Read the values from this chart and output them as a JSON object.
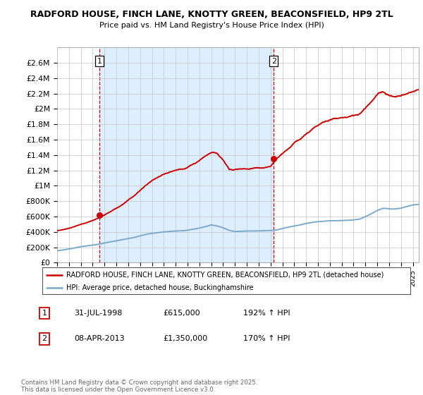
{
  "title1": "RADFORD HOUSE, FINCH LANE, KNOTTY GREEN, BEACONSFIELD, HP9 2TL",
  "title2": "Price paid vs. HM Land Registry's House Price Index (HPI)",
  "red_label": "RADFORD HOUSE, FINCH LANE, KNOTTY GREEN, BEACONSFIELD, HP9 2TL (detached house)",
  "blue_label": "HPI: Average price, detached house, Buckinghamshire",
  "annotation1_date": "31-JUL-1998",
  "annotation1_price": "£615,000",
  "annotation1_hpi": "192% ↑ HPI",
  "annotation2_date": "08-APR-2013",
  "annotation2_price": "£1,350,000",
  "annotation2_hpi": "170% ↑ HPI",
  "footnote": "Contains HM Land Registry data © Crown copyright and database right 2025.\nThis data is licensed under the Open Government Licence v3.0.",
  "red_color": "#cc0000",
  "blue_color": "#7aaacc",
  "shade_color": "#ddeeff",
  "background": "#ffffff",
  "grid_color": "#cccccc",
  "ylim": [
    0,
    2800000
  ],
  "yticks": [
    0,
    200000,
    400000,
    600000,
    800000,
    1000000,
    1200000,
    1400000,
    1600000,
    1800000,
    2000000,
    2200000,
    2400000,
    2600000
  ],
  "sale1_x": 1998.58,
  "sale1_y": 615000,
  "sale2_x": 2013.27,
  "sale2_y": 1350000,
  "xmin": 1995.0,
  "xmax": 2025.5
}
